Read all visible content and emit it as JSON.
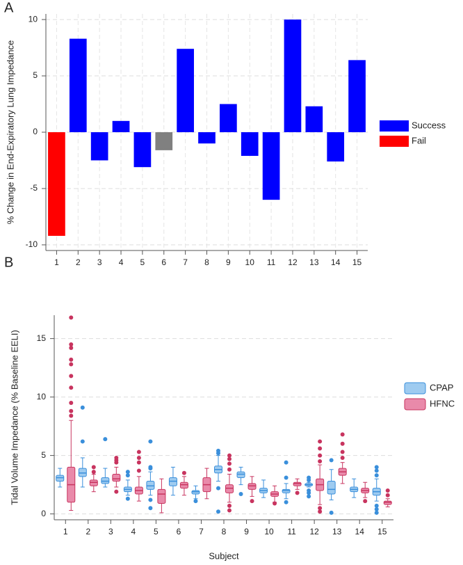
{
  "chart_data": [
    {
      "type": "bar",
      "panel_label": "A",
      "y_label": "% Change in End-Expiratory Lung Impedance",
      "categories": [
        "1",
        "2",
        "3",
        "4",
        "5",
        "6",
        "7",
        "8",
        "9",
        "10",
        "11",
        "12",
        "13",
        "14",
        "15"
      ],
      "values": [
        -9.2,
        8.3,
        -2.5,
        1.0,
        -3.1,
        -1.6,
        7.4,
        -1.0,
        2.5,
        -2.1,
        -6.0,
        10.0,
        2.3,
        -2.6,
        6.4
      ],
      "colors": [
        "#ff0000",
        "#0000ff",
        "#0000ff",
        "#0000ff",
        "#0000ff",
        "#808080",
        "#0000ff",
        "#0000ff",
        "#0000ff",
        "#0000ff",
        "#0000ff",
        "#0000ff",
        "#0000ff",
        "#0000ff",
        "#0000ff"
      ],
      "legend": [
        {
          "name": "Success",
          "color": "#0000ff"
        },
        {
          "name": "Fail",
          "color": "#ff0000"
        }
      ],
      "legend_position": "right",
      "ylim": [
        -10.5,
        10.5
      ],
      "yticks": [
        -10,
        -5,
        0,
        5,
        10
      ],
      "grid": true
    },
    {
      "type": "box",
      "panel_label": "B",
      "x_label": "Subject",
      "y_label": "Tidal Volume Impedance (% Baseline EELI)",
      "categories": [
        "1",
        "2",
        "3",
        "4",
        "5",
        "6",
        "7",
        "8",
        "9",
        "10",
        "11",
        "12",
        "13",
        "14",
        "15"
      ],
      "legend_position": "right",
      "ylim": [
        -0.5,
        17
      ],
      "yticks": [
        0,
        5,
        10,
        15
      ],
      "grid": true,
      "series": [
        {
          "name": "CPAP",
          "color": "#3a8fdb",
          "fill": "#9ecbf0",
          "min": [
            2.3,
            2.3,
            2.3,
            1.6,
            1.6,
            1.6,
            1.3,
            2.8,
            2.5,
            1.4,
            1.3,
            2.3,
            1.2,
            1.4,
            1.1
          ],
          "q1": [
            2.8,
            3.2,
            2.6,
            1.9,
            2.1,
            2.4,
            1.7,
            3.5,
            3.1,
            1.8,
            1.8,
            2.4,
            1.7,
            1.9,
            1.6
          ],
          "median": [
            3.1,
            3.5,
            2.8,
            2.1,
            2.4,
            2.8,
            1.9,
            3.8,
            3.4,
            2.0,
            2.0,
            2.5,
            2.1,
            2.1,
            1.9
          ],
          "q3": [
            3.3,
            3.9,
            3.1,
            2.3,
            2.8,
            3.1,
            2.0,
            4.1,
            3.6,
            2.2,
            2.1,
            2.6,
            2.8,
            2.3,
            2.2
          ],
          "max": [
            3.9,
            4.8,
            3.9,
            2.9,
            3.6,
            4.0,
            2.4,
            5.0,
            4.0,
            2.9,
            2.6,
            2.7,
            3.8,
            3.0,
            3.0
          ],
          "outliers": [
            [],
            [
              6.2,
              9.1
            ],
            [
              6.4
            ],
            [
              1.3,
              3.3,
              3.6
            ],
            [
              0.5,
              1.2,
              3.9,
              4.0,
              6.2
            ],
            [],
            [
              1.1
            ],
            [
              0.2,
              2.2,
              5.2,
              5.4
            ],
            [
              1.7
            ],
            [],
            [
              1.0,
              3.1,
              4.4
            ],
            [
              1.5,
              1.8,
              2.0,
              2.9,
              3.1
            ],
            [
              0.1,
              4.6
            ],
            [],
            [
              0.1,
              0.4,
              0.7,
              3.3,
              3.7,
              4.0
            ]
          ]
        },
        {
          "name": "HFNC",
          "color": "#c8345f",
          "fill": "#e98aaa",
          "min": [
            0.3,
            1.9,
            2.3,
            1.1,
            0.1,
            1.6,
            1.3,
            1.0,
            1.5,
            1.0,
            2.1,
            0.8,
            2.6,
            1.4,
            0.6
          ],
          "q1": [
            1.0,
            2.4,
            2.8,
            1.7,
            0.9,
            2.2,
            1.9,
            1.8,
            2.1,
            1.5,
            2.4,
            2.0,
            3.3,
            1.8,
            0.8
          ],
          "median": [
            2.5,
            2.7,
            3.0,
            2.0,
            1.7,
            2.5,
            2.5,
            2.2,
            2.4,
            1.7,
            2.6,
            2.5,
            3.6,
            2.0,
            1.0
          ],
          "q3": [
            4.0,
            2.9,
            3.4,
            2.3,
            2.1,
            2.7,
            3.1,
            2.5,
            2.6,
            1.9,
            2.7,
            3.0,
            3.9,
            2.2,
            1.1
          ],
          "max": [
            8.0,
            3.4,
            4.0,
            3.2,
            3.0,
            3.2,
            3.9,
            3.4,
            3.2,
            2.4,
            3.0,
            4.2,
            4.4,
            2.7,
            1.3
          ],
          "outliers": [
            [
              8.4,
              8.8,
              9.5,
              10.8,
              11.8,
              12.8,
              13.2,
              14.2,
              14.5,
              16.8
            ],
            [
              3.6,
              4.0
            ],
            [
              1.9,
              4.4,
              4.6,
              4.8
            ],
            [
              3.7,
              4.4,
              4.8,
              5.3
            ],
            [],
            [
              3.5
            ],
            [],
            [
              0.3,
              0.7,
              3.8,
              4.3,
              4.7,
              5.0
            ],
            [
              1.1
            ],
            [
              0.9
            ],
            [
              1.8
            ],
            [
              0.2,
              0.5,
              4.5,
              5.0,
              5.6,
              6.2
            ],
            [
              4.8,
              5.3,
              6.0,
              6.8
            ],
            [
              1.1
            ],
            [
              1.6,
              2.0
            ]
          ]
        }
      ]
    }
  ]
}
